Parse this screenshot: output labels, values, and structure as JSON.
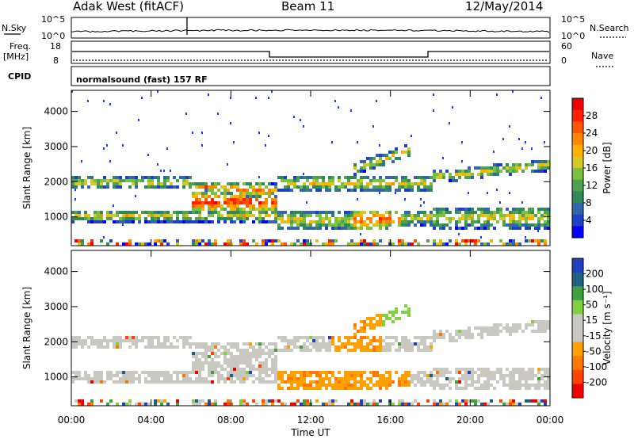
{
  "header": {
    "station": "Adak West (fitACF)",
    "beam": "Beam 11",
    "date": "12/May/2014"
  },
  "panels": {
    "nsky_label": "N.Sky",
    "nsky_ticks": [
      "10^5",
      "10^0"
    ],
    "nsearch_label": "N.Search",
    "nsearch_ticks": [
      "10^5",
      "10^0"
    ],
    "freq_label": "Freq.",
    "freq_unit": "[MHz]",
    "freq_ticks": [
      "18",
      "8"
    ],
    "nave_label": "Nave",
    "nave_ticks": [
      "60",
      "0"
    ],
    "cpid_label": "CPID",
    "cpid_text": "normalsound (fast) 157 RF"
  },
  "colors": {
    "power": [
      "#0000ff",
      "#2040c8",
      "#3366aa",
      "#2e8b57",
      "#4fa050",
      "#7cc040",
      "#d4c828",
      "#ffb000",
      "#ff8800",
      "#ff5500",
      "#ff2200",
      "#ee0000"
    ],
    "velocity": [
      "#ee0000",
      "#ff4400",
      "#ff7700",
      "#ffa000",
      "#c8c8c0",
      "#c8c8c0",
      "#80d040",
      "#40a040",
      "#206080",
      "#2040c0"
    ]
  },
  "chart_data": [
    {
      "type": "heatmap",
      "name": "Power",
      "ylabel": "Slant Range [km]",
      "ylim": [
        180,
        4600
      ],
      "yticks": [
        "4000",
        "3000",
        "2000",
        "1000"
      ],
      "xlim_hours": [
        0,
        24
      ],
      "xticks": [
        "00:00",
        "04:00",
        "08:00",
        "12:00",
        "16:00",
        "20:00",
        "00:00"
      ],
      "colorbar_label": "Power [dB]",
      "colorbar_ticks": [
        "28",
        "24",
        "20",
        "16",
        "12",
        "8",
        "4"
      ],
      "bands": [
        {
          "t": [
            0,
            10.2
          ],
          "ranges": [
            [
              1850,
              2200
            ],
            [
              900,
              1250
            ]
          ]
        },
        {
          "t": [
            6.5,
            10.2
          ],
          "ranges": [
            [
              1300,
              1900
            ]
          ]
        },
        {
          "t": [
            10.2,
            18
          ],
          "ranges": [
            [
              1700,
              2300
            ],
            [
              750,
              1300
            ]
          ]
        },
        {
          "t": [
            18,
            24
          ],
          "ranges": [
            [
              2000,
              2400
            ],
            [
              800,
              1300
            ]
          ]
        }
      ]
    },
    {
      "type": "heatmap",
      "name": "Velocity",
      "ylabel": "Slant Range [km]",
      "ylim": [
        180,
        4600
      ],
      "yticks": [
        "4000",
        "3000",
        "2000",
        "1000"
      ],
      "xlim_hours": [
        0,
        24
      ],
      "xticks": [
        "00:00",
        "04:00",
        "08:00",
        "12:00",
        "16:00",
        "20:00",
        "00:00"
      ],
      "xlabel": "Time UT",
      "colorbar_label": "Velocity [m s⁻¹]",
      "colorbar_ticks": [
        "200",
        "100",
        "50",
        "15",
        "-15",
        "-50",
        "-100",
        "-200"
      ]
    }
  ]
}
